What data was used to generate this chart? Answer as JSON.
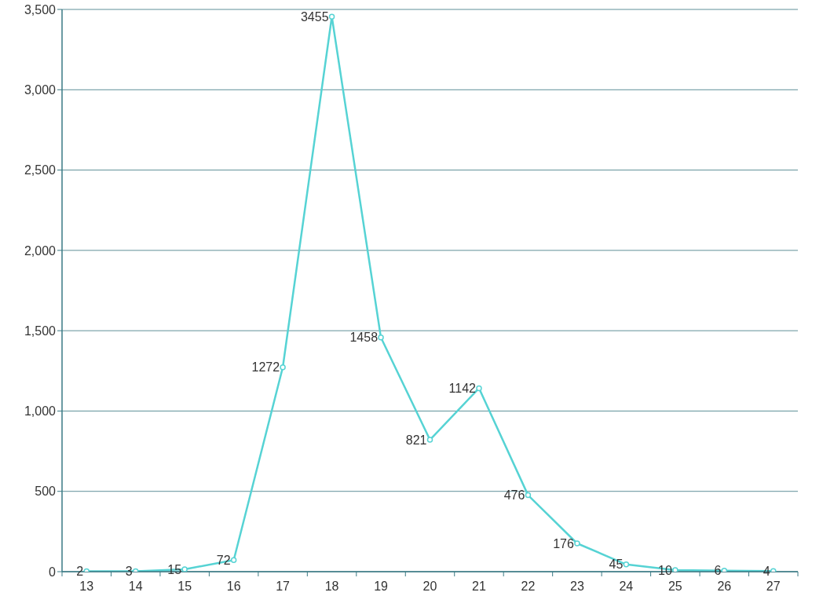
{
  "chart_data": {
    "type": "line",
    "categories": [
      "13",
      "14",
      "15",
      "16",
      "17",
      "18",
      "19",
      "20",
      "21",
      "22",
      "23",
      "24",
      "25",
      "26",
      "27"
    ],
    "series": [
      {
        "color": "#56d3d4",
        "values": [
          2,
          3,
          15,
          72,
          1272,
          3455,
          1458,
          821,
          1142,
          476,
          176,
          45,
          10,
          6,
          4
        ]
      }
    ],
    "ylim": [
      0,
      3500
    ],
    "yticks": [
      {
        "value": 0,
        "label": "0"
      },
      {
        "value": 500,
        "label": "500"
      },
      {
        "value": 1000,
        "label": "1,000"
      },
      {
        "value": 1500,
        "label": "1,500"
      },
      {
        "value": 2000,
        "label": "2,000"
      },
      {
        "value": 2500,
        "label": "2,500"
      },
      {
        "value": 3000,
        "label": "3,000"
      },
      {
        "value": 3500,
        "label": "3,500"
      }
    ],
    "grid": "y",
    "marker": "circle",
    "data_labels": true
  }
}
